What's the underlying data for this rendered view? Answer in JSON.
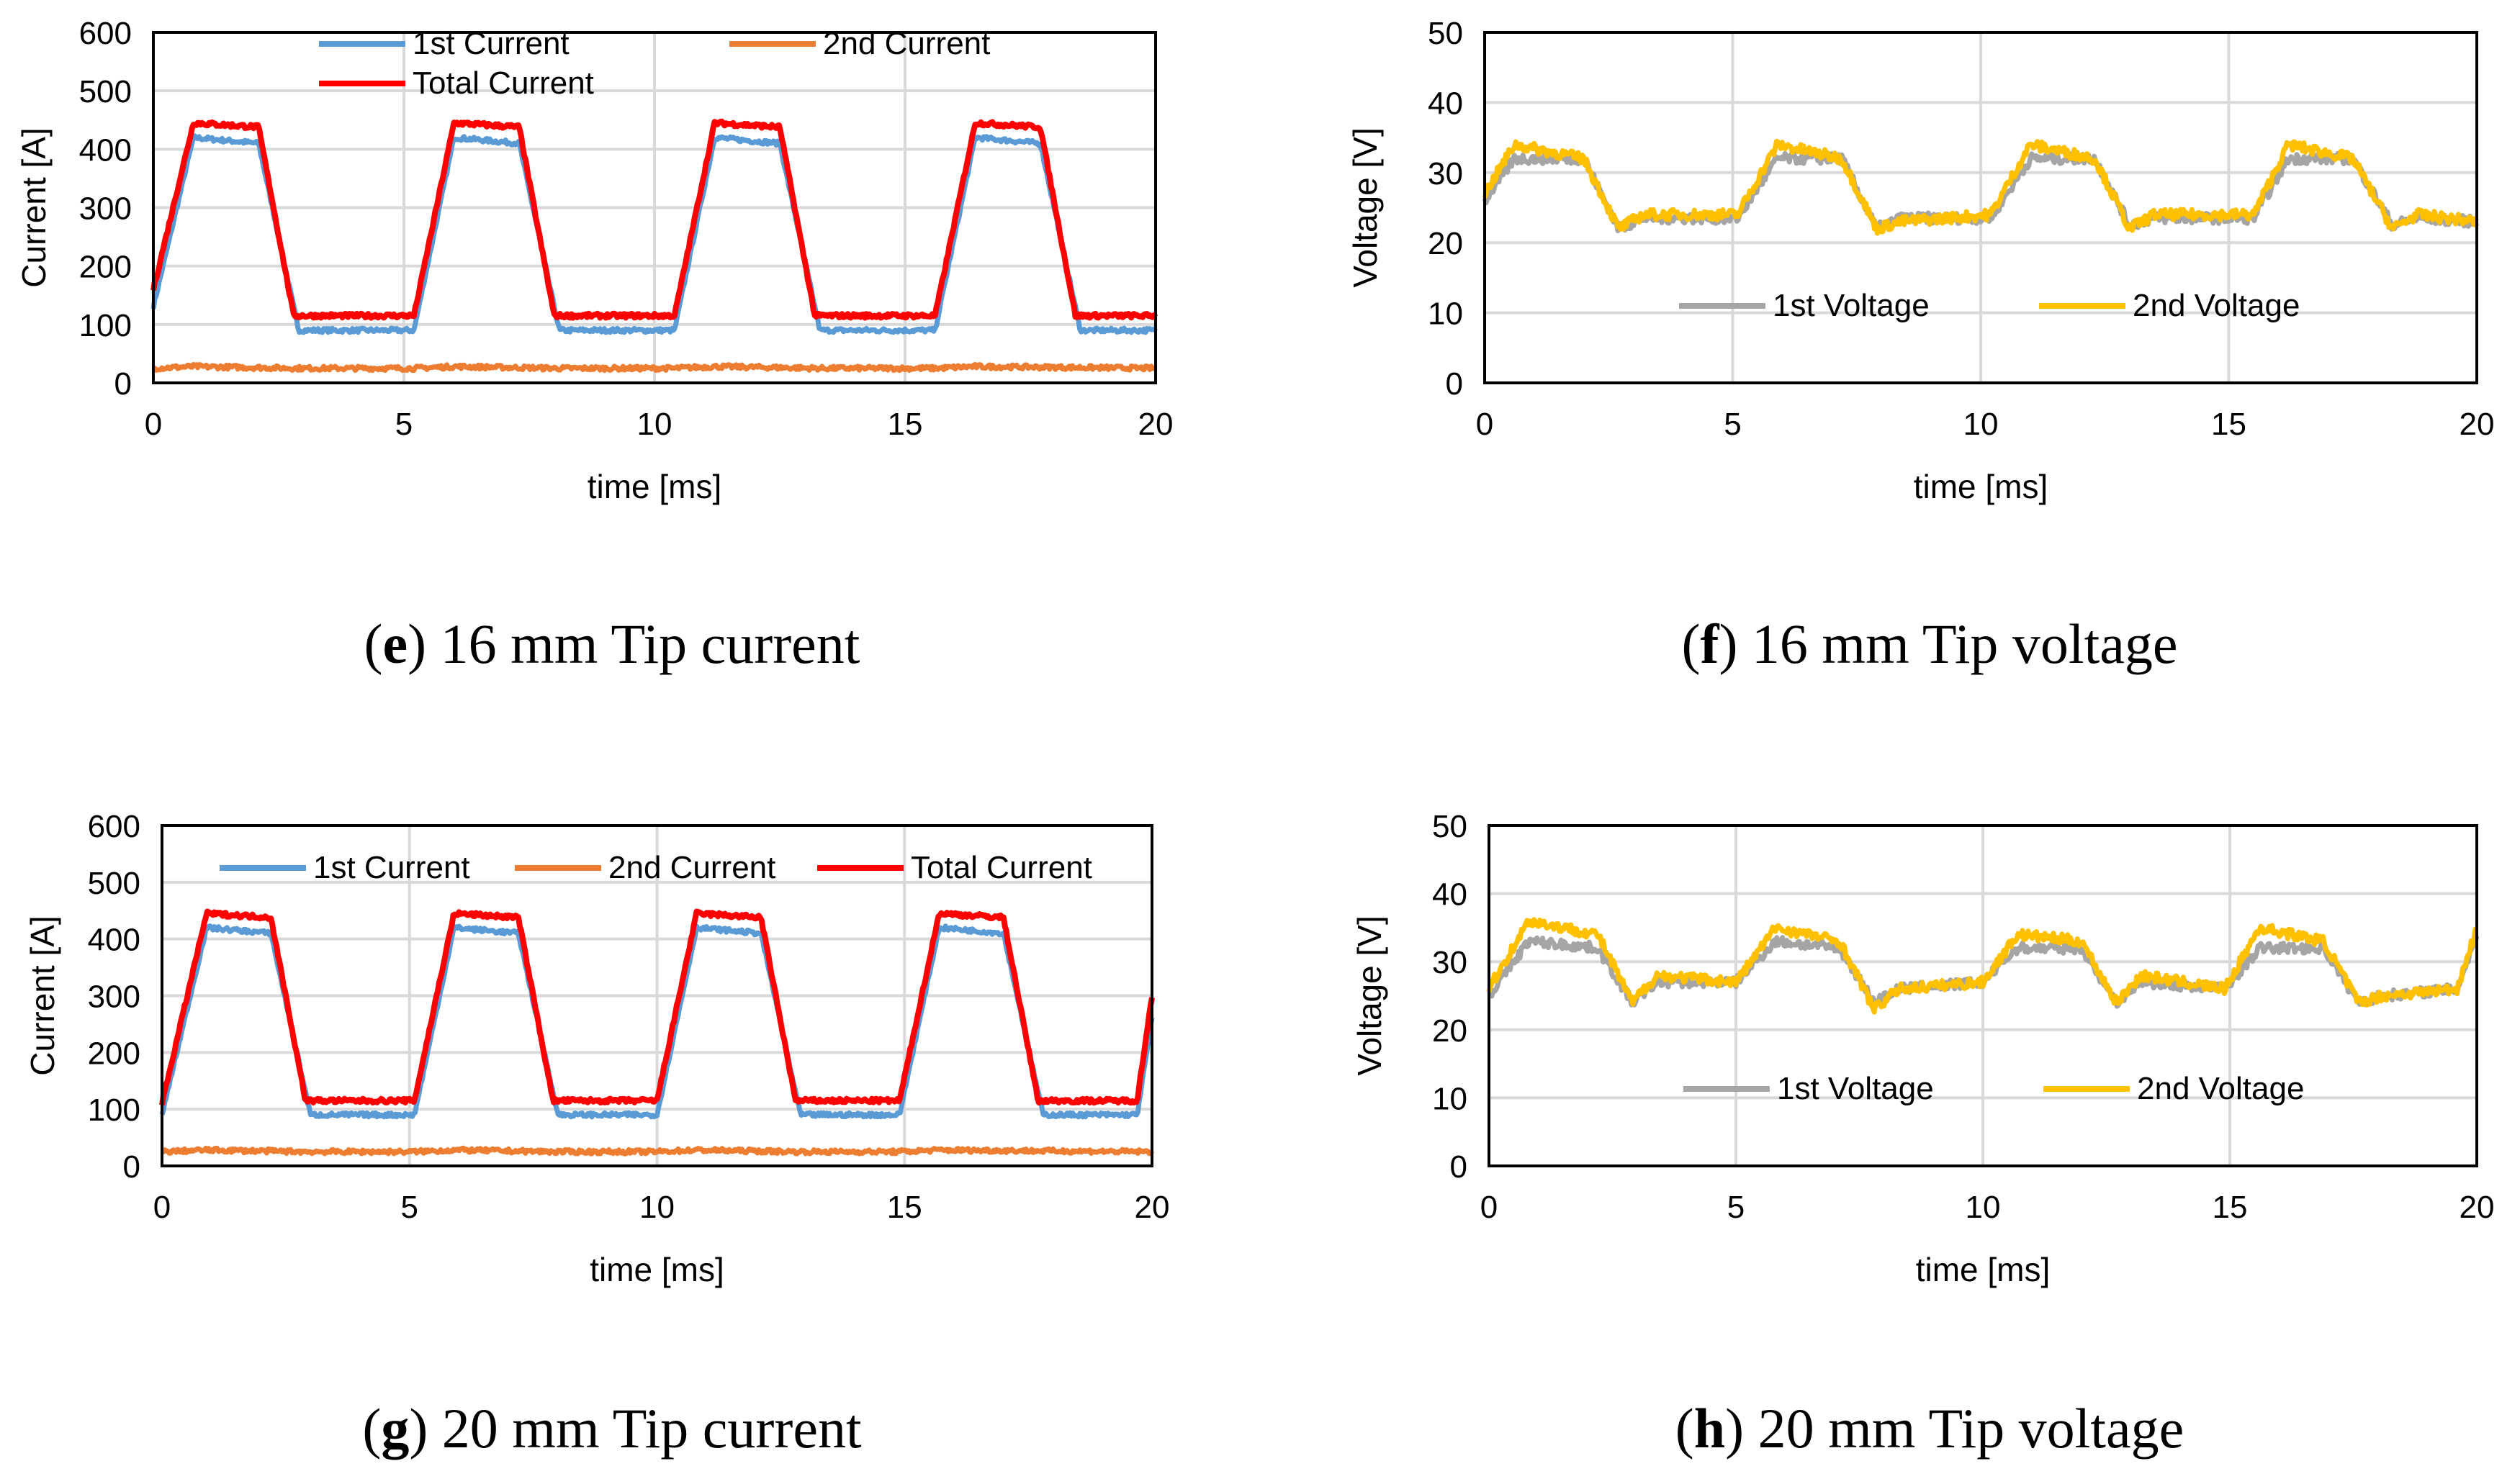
{
  "chart_data": [
    {
      "id": "e",
      "type": "line",
      "caption": {
        "letter": "e",
        "text": "16 mm Tip current"
      },
      "xlabel": "time [ms]",
      "ylabel": "Current [A]",
      "xlim": [
        0,
        20
      ],
      "ylim": [
        0,
        600
      ],
      "xticks": [
        "0",
        "5",
        "10",
        "15",
        "20"
      ],
      "yticks": [
        "0",
        "100",
        "200",
        "300",
        "400",
        "500",
        "600"
      ],
      "grid": true,
      "legend_layout": "two-row",
      "series": [
        {
          "name": "1st Current",
          "color": "#5b9bd5",
          "values": [
            130,
            420,
            410,
            90,
            90,
            420,
            410,
            90,
            90,
            420,
            410,
            90,
            90,
            420,
            410,
            90,
            90
          ],
          "x": [
            0,
            0.8,
            2.1,
            2.9,
            5.2,
            6.0,
            7.3,
            8.1,
            10.4,
            11.2,
            12.5,
            13.3,
            15.6,
            16.4,
            17.7,
            18.5,
            20
          ]
        },
        {
          "name": "2nd Current",
          "color": "#ed7d31",
          "values": [
            25,
            28,
            25,
            25,
            28,
            25,
            25,
            28,
            25,
            25,
            28,
            25
          ],
          "x": [
            0,
            0.8,
            2.9,
            5.2,
            6.0,
            8.1,
            10.4,
            11.2,
            13.3,
            15.6,
            16.4,
            20
          ]
        },
        {
          "name": "Total Current",
          "color": "#ff0000",
          "values": [
            160,
            445,
            438,
            115,
            115,
            445,
            438,
            115,
            115,
            445,
            438,
            115,
            115,
            445,
            438,
            115,
            115
          ],
          "x": [
            0,
            0.8,
            2.1,
            2.8,
            5.2,
            6.0,
            7.3,
            8.0,
            10.4,
            11.2,
            12.5,
            13.2,
            15.6,
            16.4,
            17.7,
            18.4,
            20
          ]
        }
      ]
    },
    {
      "id": "f",
      "type": "line",
      "caption": {
        "letter": "f",
        "text": "16 mm Tip voltage"
      },
      "xlabel": "time [ms]",
      "ylabel": "Voltage [V]",
      "xlim": [
        0,
        20
      ],
      "ylim": [
        0,
        50
      ],
      "xticks": [
        "0",
        "5",
        "10",
        "15",
        "20"
      ],
      "yticks": [
        "0",
        "10",
        "20",
        "30",
        "40",
        "50"
      ],
      "grid": true,
      "legend_layout": "bottom",
      "series": [
        {
          "name": "1st Voltage",
          "color": "#a5a5a5",
          "values": [
            26,
            32,
            32,
            22,
            23.5,
            23.5,
            32,
            32,
            22,
            23.5,
            23.5,
            32,
            32,
            22.5,
            23.5,
            23.5,
            32,
            32,
            22.5,
            23.5,
            23
          ],
          "x": [
            0,
            0.6,
            2.0,
            2.7,
            3.2,
            5.1,
            5.9,
            7.2,
            7.9,
            8.4,
            10.2,
            11.0,
            12.3,
            13.0,
            13.5,
            15.5,
            16.2,
            17.5,
            18.3,
            18.8,
            20
          ]
        },
        {
          "name": "2nd Voltage",
          "color": "#ffc000",
          "values": [
            27,
            34,
            32,
            22,
            24,
            24,
            34,
            32,
            22,
            23,
            24,
            34,
            32,
            22,
            24,
            24,
            34,
            32,
            22,
            24,
            23
          ],
          "x": [
            0,
            0.6,
            2.0,
            2.7,
            3.2,
            5.1,
            5.9,
            7.2,
            7.9,
            8.4,
            10.2,
            11.0,
            12.3,
            13.0,
            13.5,
            15.5,
            16.2,
            17.5,
            18.3,
            18.8,
            20
          ]
        }
      ]
    },
    {
      "id": "g",
      "type": "line",
      "caption": {
        "letter": "g",
        "text": "20 mm Tip current"
      },
      "xlabel": "time [ms]",
      "ylabel": "Current [A]",
      "xlim": [
        0,
        20
      ],
      "ylim": [
        0,
        600
      ],
      "xticks": [
        "0",
        "5",
        "10",
        "15",
        "20"
      ],
      "yticks": [
        "0",
        "100",
        "200",
        "300",
        "400",
        "500",
        "600"
      ],
      "grid": true,
      "legend_layout": "top",
      "series": [
        {
          "name": "1st Current",
          "color": "#5b9bd5",
          "values": [
            90,
            420,
            410,
            90,
            90,
            420,
            410,
            90,
            90,
            420,
            410,
            90,
            90,
            420,
            410,
            90,
            90,
            260
          ],
          "x": [
            0,
            0.9,
            2.2,
            3.0,
            5.1,
            5.9,
            7.2,
            8.0,
            10.0,
            10.8,
            12.1,
            12.9,
            14.9,
            15.7,
            17.0,
            17.8,
            19.7,
            20
          ]
        },
        {
          "name": "2nd Current",
          "color": "#ed7d31",
          "values": [
            25,
            28,
            25,
            25,
            28,
            25,
            25,
            28,
            25,
            25,
            28,
            25
          ],
          "x": [
            0,
            0.9,
            3.0,
            5.1,
            5.9,
            8.0,
            10.0,
            10.8,
            12.9,
            14.9,
            15.7,
            20
          ]
        },
        {
          "name": "Total Current",
          "color": "#ff0000",
          "values": [
            110,
            445,
            438,
            115,
            115,
            445,
            438,
            115,
            115,
            445,
            438,
            115,
            115,
            445,
            438,
            115,
            115,
            300
          ],
          "x": [
            0,
            0.9,
            2.2,
            2.9,
            5.1,
            5.9,
            7.2,
            7.9,
            10.0,
            10.8,
            12.1,
            12.8,
            14.9,
            15.7,
            17.0,
            17.7,
            19.7,
            20
          ]
        }
      ]
    },
    {
      "id": "h",
      "type": "line",
      "caption": {
        "letter": "h",
        "text": "20 mm Tip voltage"
      },
      "xlabel": "time [ms]",
      "ylabel": "Voltage [V]",
      "xlim": [
        0,
        20
      ],
      "ylim": [
        0,
        50
      ],
      "xticks": [
        "0",
        "5",
        "10",
        "15",
        "20"
      ],
      "yticks": [
        "0",
        "10",
        "20",
        "30",
        "40",
        "50"
      ],
      "grid": true,
      "legend_layout": "bottom",
      "series": [
        {
          "name": "1st Voltage",
          "color": "#a5a5a5",
          "values": [
            25,
            33,
            32,
            24,
            27,
            27,
            33,
            32,
            24,
            26,
            27,
            32,
            32,
            24,
            27,
            26,
            32,
            32,
            24,
            25,
            26,
            34
          ],
          "x": [
            0,
            0.8,
            2.2,
            2.9,
            3.4,
            5.0,
            5.8,
            7.1,
            7.8,
            8.3,
            10.0,
            10.7,
            12.0,
            12.7,
            13.2,
            14.9,
            15.6,
            16.9,
            17.6,
            18.1,
            19.6,
            20
          ]
        },
        {
          "name": "2nd Voltage",
          "color": "#ffc000",
          "values": [
            26,
            36,
            34,
            24,
            28,
            27,
            35,
            33,
            23,
            26,
            27,
            34,
            33,
            24,
            28,
            26,
            35,
            33,
            24,
            25,
            26,
            35
          ],
          "x": [
            0,
            0.8,
            2.2,
            2.9,
            3.4,
            5.0,
            5.8,
            7.1,
            7.8,
            8.3,
            10.0,
            10.7,
            12.0,
            12.7,
            13.2,
            14.9,
            15.6,
            16.9,
            17.6,
            18.1,
            19.6,
            20
          ]
        }
      ]
    }
  ]
}
